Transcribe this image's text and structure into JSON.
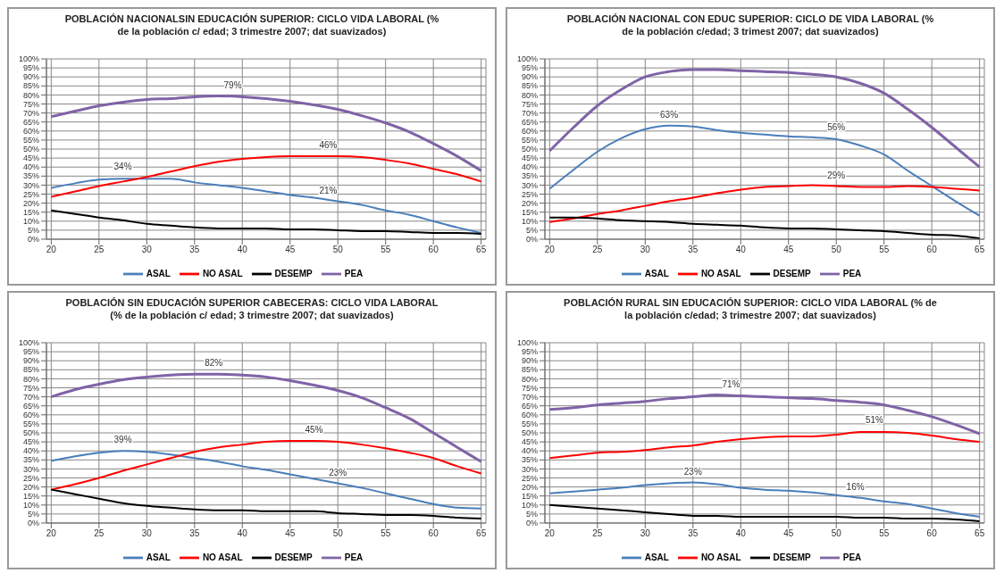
{
  "chart_data": [
    {
      "type": "line",
      "title": "POBLACIÓN NACIONALSIN EDUCACIÓN SUPERIOR: CICLO VIDA LABORAL (% de la población c/ edad; 3 trimestre 2007; dat suavizados)",
      "x": [
        20,
        22.5,
        25,
        27.5,
        30,
        32.5,
        35,
        37.5,
        40,
        42.5,
        45,
        47.5,
        50,
        52.5,
        55,
        57.5,
        60,
        62.5,
        65
      ],
      "xlim": [
        19.5,
        65.5
      ],
      "xticks": [
        20,
        25,
        30,
        35,
        40,
        45,
        50,
        55,
        60,
        65
      ],
      "ylim": [
        0,
        100
      ],
      "yticks": [
        {
          "value": 0,
          "label": "0%"
        },
        {
          "value": 5,
          "label": "5%"
        },
        {
          "value": 10,
          "label": "10%"
        },
        {
          "value": 15,
          "label": "15%"
        },
        {
          "value": 20,
          "label": "20%"
        },
        {
          "value": 25,
          "label": "25%"
        },
        {
          "value": 30,
          "label": "30%"
        },
        {
          "value": 35,
          "label": "35%"
        },
        {
          "value": 40,
          "label": "40%"
        },
        {
          "value": 45,
          "label": "45%"
        },
        {
          "value": 50,
          "label": "50%"
        },
        {
          "value": 55,
          "label": "55%"
        },
        {
          "value": 60,
          "label": "60%"
        },
        {
          "value": 65,
          "label": "65%"
        },
        {
          "value": 70,
          "label": "70%"
        },
        {
          "value": 75,
          "label": "75%"
        },
        {
          "value": 80,
          "label": "80%"
        },
        {
          "value": 85,
          "label": "85%"
        },
        {
          "value": 90,
          "label": "90%"
        },
        {
          "value": 95,
          "label": "95%"
        },
        {
          "value": 100,
          "label": "100%"
        }
      ],
      "grid": true,
      "legend": "bottom",
      "marker": "none",
      "series": [
        {
          "name": "ASAL",
          "color": "#4a7ebb",
          "values": [
            28.5,
            31,
            33,
            33.5,
            33.5,
            33.5,
            31.5,
            30,
            28.5,
            26.5,
            24.5,
            23,
            21,
            19,
            16,
            13.5,
            10,
            6.5,
            3.5
          ]
        },
        {
          "name": "NO ASAL",
          "color": "#ff0000",
          "values": [
            23.5,
            26.5,
            29.5,
            32,
            34.5,
            37.5,
            40.5,
            43,
            44.5,
            45.5,
            46,
            46,
            46,
            45.5,
            44,
            42,
            39,
            36,
            32
          ]
        },
        {
          "name": "DESEMP",
          "color": "#000000",
          "values": [
            16,
            14,
            12,
            10.5,
            8.5,
            7.5,
            6.5,
            6,
            6,
            6,
            5.5,
            5.5,
            5,
            4.5,
            4.5,
            4,
            3.5,
            3.5,
            3
          ]
        },
        {
          "name": "PEA",
          "color": "#7f63a6",
          "values": [
            68,
            71,
            74,
            76,
            77.5,
            78,
            79,
            79.5,
            79,
            78,
            76.5,
            74.5,
            72,
            68.5,
            64.5,
            59.5,
            53,
            46,
            38
          ]
        }
      ],
      "annotations": [
        {
          "text": "79%",
          "x": 39,
          "y": 79
        },
        {
          "text": "46%",
          "x": 49,
          "y": 46
        },
        {
          "text": "34%",
          "x": 27.5,
          "y": 34
        },
        {
          "text": "21%",
          "x": 49,
          "y": 21
        }
      ]
    },
    {
      "type": "line",
      "title": "POBLACIÓN NACIONAL CON EDUC SUPERIOR: CICLO DE VIDA LABORAL (% de la población c/edad; 3 trimest 2007; dat suavizados)",
      "x": [
        20,
        22.5,
        25,
        27.5,
        30,
        32.5,
        35,
        37.5,
        40,
        42.5,
        45,
        47.5,
        50,
        52.5,
        55,
        57.5,
        60,
        62.5,
        65
      ],
      "xlim": [
        19.5,
        65.5
      ],
      "xticks": [
        20,
        25,
        30,
        35,
        40,
        45,
        50,
        55,
        60,
        65
      ],
      "ylim": [
        0,
        100
      ],
      "yticks": [
        {
          "value": 0,
          "label": "0%"
        },
        {
          "value": 5,
          "label": "5%"
        },
        {
          "value": 10,
          "label": "10%"
        },
        {
          "value": 15,
          "label": "15%"
        },
        {
          "value": 20,
          "label": "20%"
        },
        {
          "value": 25,
          "label": "25%"
        },
        {
          "value": 30,
          "label": "30%"
        },
        {
          "value": 35,
          "label": "35%"
        },
        {
          "value": 40,
          "label": "40%"
        },
        {
          "value": 45,
          "label": "45%"
        },
        {
          "value": 50,
          "label": "50%"
        },
        {
          "value": 55,
          "label": "55%"
        },
        {
          "value": 60,
          "label": "60%"
        },
        {
          "value": 65,
          "label": "65%"
        },
        {
          "value": 70,
          "label": "70%"
        },
        {
          "value": 75,
          "label": "75%"
        },
        {
          "value": 80,
          "label": "80%"
        },
        {
          "value": 85,
          "label": "85%"
        },
        {
          "value": 90,
          "label": "90%"
        },
        {
          "value": 95,
          "label": "95%"
        },
        {
          "value": 100,
          "label": "100%"
        }
      ],
      "grid": true,
      "legend": "bottom",
      "marker": "none",
      "series": [
        {
          "name": "ASAL",
          "color": "#4a7ebb",
          "values": [
            28,
            38.5,
            48.5,
            56,
            61,
            63,
            62.5,
            60.5,
            59,
            58,
            57,
            56.5,
            55.5,
            52,
            47,
            38,
            29.5,
            21,
            13
          ]
        },
        {
          "name": "NO ASAL",
          "color": "#ff0000",
          "values": [
            9.5,
            11.5,
            14,
            16,
            18.5,
            21,
            23,
            25.5,
            27.5,
            29,
            29.5,
            30,
            29.5,
            29,
            29,
            29.5,
            29,
            28,
            27
          ]
        },
        {
          "name": "DESEMP",
          "color": "#000000",
          "values": [
            12,
            12,
            11.5,
            10.5,
            10,
            9.5,
            8.5,
            8,
            7.5,
            6.5,
            6,
            6,
            5.5,
            5,
            4.5,
            3.5,
            2.5,
            2,
            0.5
          ]
        },
        {
          "name": "PEA",
          "color": "#7f63a6",
          "values": [
            49,
            62,
            74,
            83,
            90,
            93,
            94,
            94,
            93.5,
            93,
            92.5,
            91.5,
            90,
            86.5,
            81,
            72,
            62,
            51,
            40
          ]
        }
      ],
      "annotations": [
        {
          "text": "63%",
          "x": 32.5,
          "y": 63
        },
        {
          "text": "56%",
          "x": 50,
          "y": 56
        },
        {
          "text": "29%",
          "x": 50,
          "y": 29
        }
      ]
    },
    {
      "type": "line",
      "title": "POBLACIÓN SIN EDUCACIÓN SUPERIOR CABECERAS: CICLO VIDA LABORAL (% de la población c/ edad; 3 trimestre 2007; dat suavizados)",
      "x": [
        20,
        22.5,
        25,
        27.5,
        30,
        32.5,
        35,
        37.5,
        40,
        42.5,
        45,
        47.5,
        50,
        52.5,
        55,
        57.5,
        60,
        62.5,
        65
      ],
      "xlim": [
        19.5,
        65.5
      ],
      "xticks": [
        20,
        25,
        30,
        35,
        40,
        45,
        50,
        55,
        60,
        65
      ],
      "ylim": [
        0,
        100
      ],
      "yticks": [
        {
          "value": 0,
          "label": "0%"
        },
        {
          "value": 5,
          "label": "5%"
        },
        {
          "value": 10,
          "label": "10%"
        },
        {
          "value": 15,
          "label": "15%"
        },
        {
          "value": 20,
          "label": "20%"
        },
        {
          "value": 25,
          "label": "25%"
        },
        {
          "value": 30,
          "label": "30%"
        },
        {
          "value": 35,
          "label": "35%"
        },
        {
          "value": 40,
          "label": "40%"
        },
        {
          "value": 45,
          "label": "45%"
        },
        {
          "value": 50,
          "label": "50%"
        },
        {
          "value": 55,
          "label": "55%"
        },
        {
          "value": 60,
          "label": "60%"
        },
        {
          "value": 65,
          "label": "65%"
        },
        {
          "value": 70,
          "label": "70%"
        },
        {
          "value": 75,
          "label": "75%"
        },
        {
          "value": 80,
          "label": "80%"
        },
        {
          "value": 85,
          "label": "85%"
        },
        {
          "value": 90,
          "label": "90%"
        },
        {
          "value": 95,
          "label": "95%"
        },
        {
          "value": 100,
          "label": "100%"
        }
      ],
      "grid": true,
      "legend": "bottom",
      "marker": "none",
      "series": [
        {
          "name": "ASAL",
          "color": "#4a7ebb",
          "values": [
            34.5,
            37,
            39,
            40,
            39.5,
            38,
            36,
            34,
            31.5,
            29.5,
            27,
            24.5,
            22,
            19.5,
            16.5,
            13.5,
            10.5,
            8.5,
            8
          ]
        },
        {
          "name": "NO ASAL",
          "color": "#ff0000",
          "values": [
            18.5,
            21.5,
            25,
            29,
            32.5,
            36,
            39.5,
            42,
            43.5,
            45,
            45.5,
            45.5,
            45,
            43.5,
            41.5,
            39,
            36,
            31.5,
            27.5
          ]
        },
        {
          "name": "DESEMP",
          "color": "#000000",
          "values": [
            18.5,
            16,
            13.5,
            11,
            9.5,
            8.5,
            7.5,
            7,
            7,
            6.5,
            6.5,
            6.5,
            5.5,
            5,
            4.5,
            4.5,
            4,
            3,
            2.5
          ]
        },
        {
          "name": "PEA",
          "color": "#7f63a6",
          "values": [
            70,
            74,
            77,
            79.5,
            81,
            82,
            82.5,
            82.5,
            82,
            81,
            79,
            76.5,
            73.5,
            69.5,
            64,
            58,
            50,
            42,
            34
          ]
        }
      ],
      "annotations": [
        {
          "text": "82%",
          "x": 37,
          "y": 82.5
        },
        {
          "text": "45%",
          "x": 47.5,
          "y": 45.5
        },
        {
          "text": "39%",
          "x": 27.5,
          "y": 40
        },
        {
          "text": "23%",
          "x": 50,
          "y": 22
        }
      ]
    },
    {
      "type": "line",
      "title": "POBLACIÓN RURAL SIN EDUCACIÓN SUPERIOR: CICLO VIDA LABORAL (% de la población c/edad; 3 trimestre 2007; dat suavizados)",
      "x": [
        20,
        22.5,
        25,
        27.5,
        30,
        32.5,
        35,
        37.5,
        40,
        42.5,
        45,
        47.5,
        50,
        52.5,
        55,
        57.5,
        60,
        62.5,
        65
      ],
      "xlim": [
        19.5,
        65.5
      ],
      "xticks": [
        20,
        25,
        30,
        35,
        40,
        45,
        50,
        55,
        60,
        65
      ],
      "ylim": [
        0,
        100
      ],
      "yticks": [
        {
          "value": 0,
          "label": "0%"
        },
        {
          "value": 5,
          "label": "5%"
        },
        {
          "value": 10,
          "label": "10%"
        },
        {
          "value": 15,
          "label": "15%"
        },
        {
          "value": 20,
          "label": "20%"
        },
        {
          "value": 25,
          "label": "25%"
        },
        {
          "value": 30,
          "label": "30%"
        },
        {
          "value": 35,
          "label": "35%"
        },
        {
          "value": 40,
          "label": "40%"
        },
        {
          "value": 45,
          "label": "45%"
        },
        {
          "value": 50,
          "label": "50%"
        },
        {
          "value": 55,
          "label": "55%"
        },
        {
          "value": 60,
          "label": "60%"
        },
        {
          "value": 65,
          "label": "65%"
        },
        {
          "value": 70,
          "label": "70%"
        },
        {
          "value": 75,
          "label": "75%"
        },
        {
          "value": 80,
          "label": "80%"
        },
        {
          "value": 85,
          "label": "85%"
        },
        {
          "value": 90,
          "label": "90%"
        },
        {
          "value": 95,
          "label": "95%"
        },
        {
          "value": 100,
          "label": "100%"
        }
      ],
      "grid": true,
      "legend": "bottom",
      "marker": "none",
      "series": [
        {
          "name": "ASAL",
          "color": "#4a7ebb",
          "values": [
            16.5,
            17.5,
            18.5,
            19.5,
            21,
            22,
            22.5,
            21.5,
            19.5,
            18.5,
            18,
            17,
            15.5,
            14,
            12,
            10.5,
            8,
            5.5,
            3.5
          ]
        },
        {
          "name": "NO ASAL",
          "color": "#ff0000",
          "values": [
            36,
            37.5,
            39,
            39.5,
            40.5,
            42,
            43,
            45,
            46.5,
            47.5,
            48,
            48,
            49,
            50.5,
            50.5,
            50,
            48.5,
            46.5,
            45
          ]
        },
        {
          "name": "DESEMP",
          "color": "#000000",
          "values": [
            10,
            9,
            8,
            7,
            6,
            5,
            4,
            4,
            3.5,
            3.5,
            3.5,
            3.5,
            3.5,
            3,
            3,
            2.5,
            2.5,
            2,
            1
          ]
        },
        {
          "name": "PEA",
          "color": "#7f63a6",
          "values": [
            63,
            64,
            65.5,
            66.5,
            67.5,
            69,
            70,
            71,
            70.5,
            70,
            69.5,
            69,
            68,
            67,
            65.5,
            62.5,
            59,
            54.5,
            49.5
          ]
        }
      ],
      "annotations": [
        {
          "text": "71%",
          "x": 39,
          "y": 71
        },
        {
          "text": "51%",
          "x": 54,
          "y": 51
        },
        {
          "text": "23%",
          "x": 35,
          "y": 22.5
        },
        {
          "text": "16%",
          "x": 52,
          "y": 14
        }
      ]
    }
  ]
}
